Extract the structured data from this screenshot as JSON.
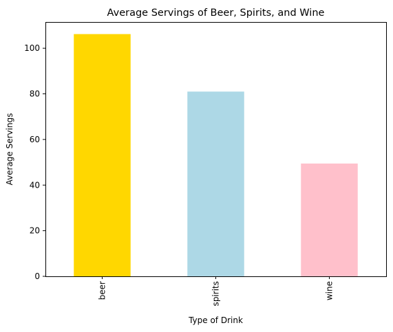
{
  "chart_data": {
    "type": "bar",
    "title": "Average Servings of Beer, Spirits, and Wine",
    "xlabel": "Type of Drink",
    "ylabel": "Average Servings",
    "categories": [
      "beer",
      "spirits",
      "wine"
    ],
    "values": [
      106.2,
      80.99,
      49.45
    ],
    "bar_colors": [
      "#FFD700",
      "#ADD8E6",
      "#FFC0CB"
    ],
    "ylim": [
      0,
      111.5
    ],
    "yticks": [
      0,
      20,
      40,
      60,
      80,
      100
    ],
    "grid": false,
    "legend": "none"
  }
}
